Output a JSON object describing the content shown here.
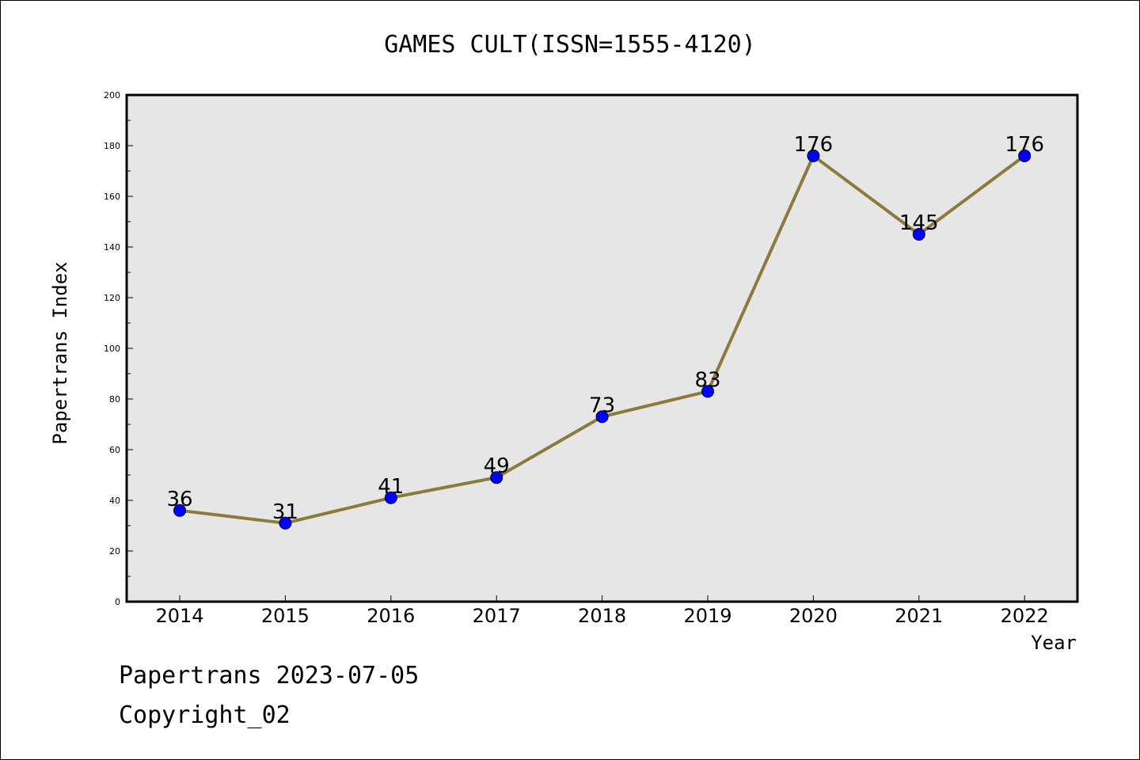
{
  "chart_data": {
    "type": "line",
    "title": "GAMES CULT(ISSN=1555-4120)",
    "xlabel": "Year",
    "ylabel": "Papertrans Index",
    "categories": [
      "2014",
      "2015",
      "2016",
      "2017",
      "2018",
      "2019",
      "2020",
      "2021",
      "2022"
    ],
    "series": [
      {
        "values": [
          36,
          31,
          41,
          49,
          73,
          83,
          176,
          145,
          176
        ]
      }
    ],
    "ylim": [
      0,
      200
    ],
    "y_ticks": [
      0,
      20,
      40,
      60,
      80,
      100,
      120,
      140,
      160,
      180,
      200
    ],
    "data_labels": true,
    "grid": false,
    "legend": "none",
    "colors": {
      "line": "#8c7a3a",
      "marker": "#0000ff",
      "plot_background": "#e6e6e6",
      "axes": "#000000"
    }
  },
  "footer": {
    "date_text": "Papertrans 2023-07-05",
    "copyright_text": "Copyright_02"
  }
}
